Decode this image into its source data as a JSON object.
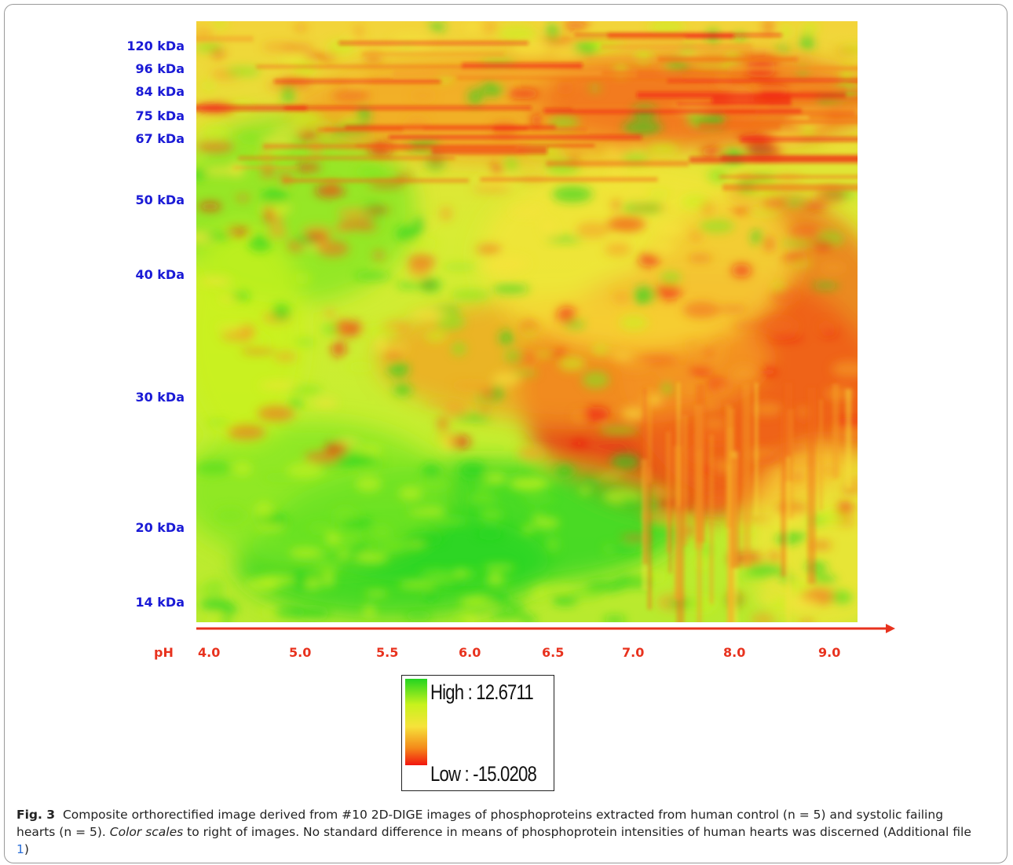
{
  "figure": {
    "mw_labels": [
      "120 kDa",
      "96 kDa",
      "84 kDa",
      "75 kDa",
      "67 kDa",
      "50 kDa",
      "40 kDa",
      "30 kDa",
      "20 kDa",
      "14 kDa"
    ],
    "ph_title": "pH",
    "ph_labels": [
      "4.0",
      "5.0",
      "5.5",
      "6.0",
      "6.5",
      "7.0",
      "8.0",
      "9.0"
    ],
    "legend": {
      "high": "High : 12.6711",
      "low": "Low : -15.0208"
    },
    "colors": {
      "high": "#22d421",
      "mid": "#f6e33a",
      "low": "#f2160f",
      "axis": "#e8321e",
      "mw_text": "#1a1ad6"
    }
  },
  "caption": {
    "label": "Fig. 3",
    "part1": "Composite orthorectified image derived from #10 2D-DIGE images of phosphoproteins extracted from human control (n = 5) and systolic failing hearts (n = 5). ",
    "italic": "Color scales",
    "part2": " to right of images. No standard difference in means of phosphoprotein intensities of human hearts was discerned (Additional file ",
    "link": "1",
    "part3": ")"
  }
}
